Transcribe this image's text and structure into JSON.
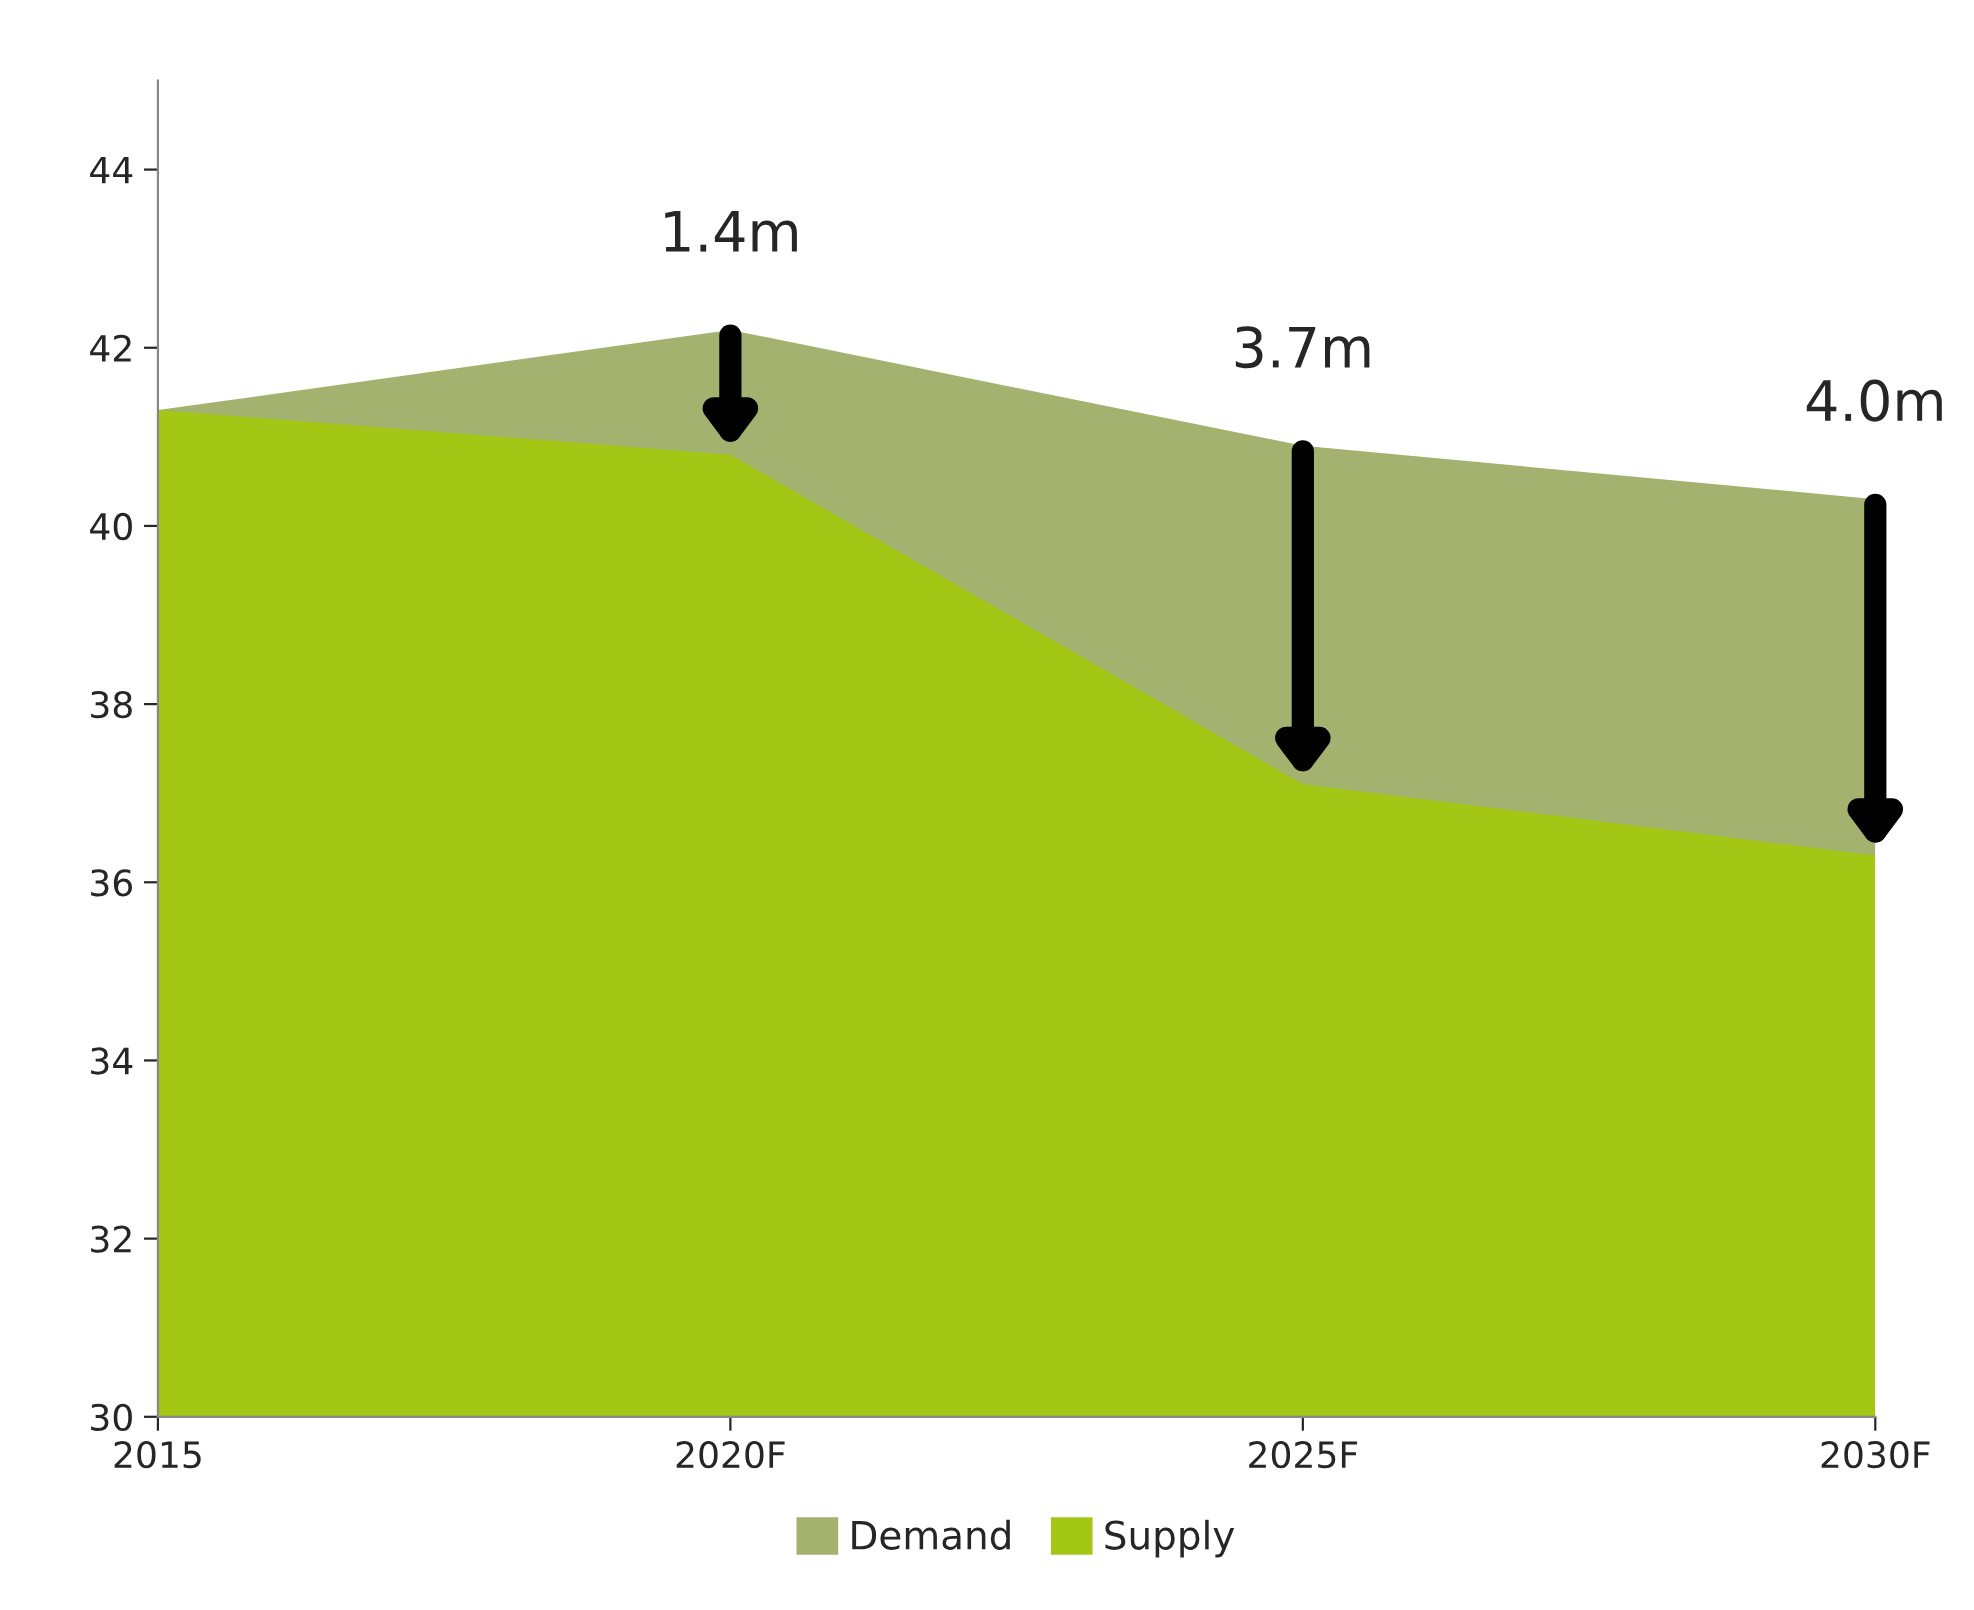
{
  "chart_data": {
    "type": "area",
    "categories": [
      "2015",
      "2020F",
      "2025F",
      "2030F"
    ],
    "series": [
      {
        "name": "Demand",
        "color": "#a3b26e",
        "values": [
          41.3,
          42.2,
          40.9,
          40.3
        ]
      },
      {
        "name": "Supply",
        "color": "#a4c615",
        "values": [
          41.3,
          40.8,
          37.1,
          36.3
        ]
      }
    ],
    "ylim": [
      30,
      45
    ],
    "yticks": [
      30,
      32,
      34,
      36,
      38,
      40,
      42,
      44
    ],
    "annotations": [
      {
        "text": "1.4m",
        "x": "2020F",
        "y": 42.2
      },
      {
        "text": "3.7m",
        "x": "2025F",
        "y": 40.9
      },
      {
        "text": "4.0m",
        "x": "2030F",
        "y": 40.3
      }
    ],
    "grid": false,
    "legend": "bottom"
  }
}
